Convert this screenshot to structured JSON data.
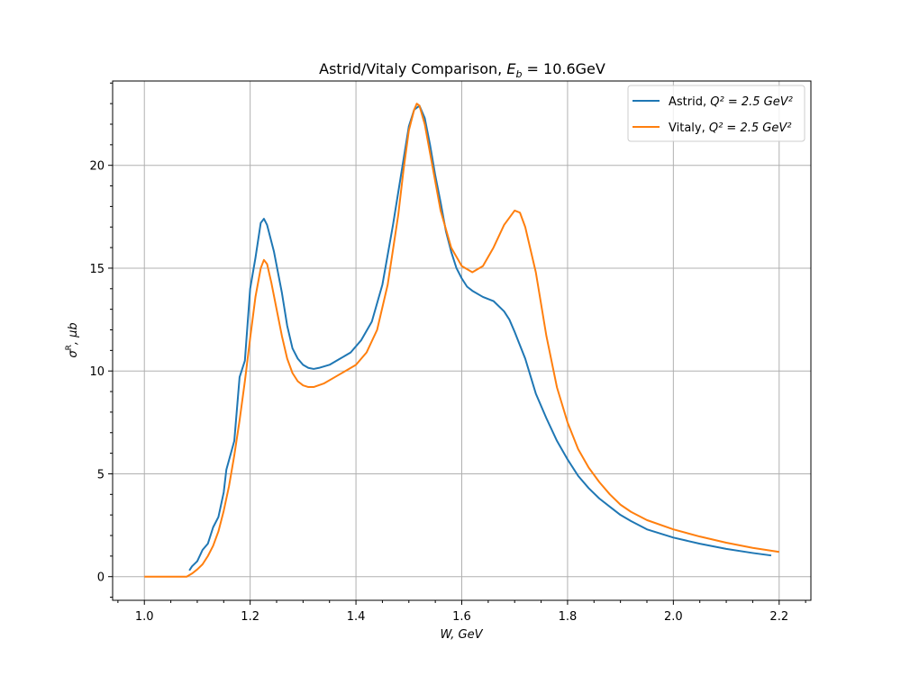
{
  "chart_data": {
    "type": "line",
    "title_plain": "Astrid/Vitaly Comparison, ",
    "title_math_base": "E",
    "title_math_sub": "b",
    "title_math_rest": " = 10.6GeV",
    "xlabel_a": "W",
    "xlabel_b": ", GeV",
    "ylabel_base": "σ",
    "ylabel_sup": "R",
    "ylabel_rest": ", μb",
    "xlim": [
      0.94,
      2.26
    ],
    "ylim": [
      -1.15,
      24.1
    ],
    "x_ticks": [
      1.0,
      1.2,
      1.4,
      1.6,
      1.8,
      2.0,
      2.2
    ],
    "x_tick_labels": [
      "1.0",
      "1.2",
      "1.4",
      "1.6",
      "1.8",
      "2.0",
      "2.2"
    ],
    "y_ticks": [
      0,
      5,
      10,
      15,
      20
    ],
    "y_tick_labels": [
      "0",
      "5",
      "10",
      "15",
      "20"
    ],
    "grid": true,
    "legend_placement": "top-right",
    "series": [
      {
        "name_prefix": "Astrid, ",
        "name_math": "Q² = 2.5 GeV²",
        "color": "#1f77b4",
        "points": [
          [
            1.085,
            0.3
          ],
          [
            1.09,
            0.5
          ],
          [
            1.1,
            0.75
          ],
          [
            1.11,
            1.3
          ],
          [
            1.12,
            1.6
          ],
          [
            1.13,
            2.4
          ],
          [
            1.14,
            2.9
          ],
          [
            1.15,
            4.1
          ],
          [
            1.155,
            5.2
          ],
          [
            1.17,
            6.6
          ],
          [
            1.18,
            9.7
          ],
          [
            1.19,
            10.5
          ],
          [
            1.2,
            14.0
          ],
          [
            1.21,
            15.5
          ],
          [
            1.22,
            17.2
          ],
          [
            1.226,
            17.4
          ],
          [
            1.232,
            17.1
          ],
          [
            1.245,
            15.8
          ],
          [
            1.26,
            13.8
          ],
          [
            1.27,
            12.2
          ],
          [
            1.28,
            11.1
          ],
          [
            1.29,
            10.6
          ],
          [
            1.3,
            10.3
          ],
          [
            1.31,
            10.15
          ],
          [
            1.32,
            10.1
          ],
          [
            1.33,
            10.15
          ],
          [
            1.35,
            10.3
          ],
          [
            1.37,
            10.6
          ],
          [
            1.39,
            10.9
          ],
          [
            1.41,
            11.5
          ],
          [
            1.43,
            12.4
          ],
          [
            1.45,
            14.2
          ],
          [
            1.47,
            17.1
          ],
          [
            1.49,
            20.3
          ],
          [
            1.5,
            21.9
          ],
          [
            1.51,
            22.7
          ],
          [
            1.52,
            22.9
          ],
          [
            1.53,
            22.3
          ],
          [
            1.54,
            21.0
          ],
          [
            1.55,
            19.5
          ],
          [
            1.56,
            18.2
          ],
          [
            1.57,
            16.8
          ],
          [
            1.58,
            15.8
          ],
          [
            1.59,
            15.0
          ],
          [
            1.6,
            14.5
          ],
          [
            1.61,
            14.1
          ],
          [
            1.62,
            13.9
          ],
          [
            1.64,
            13.6
          ],
          [
            1.66,
            13.4
          ],
          [
            1.68,
            12.9
          ],
          [
            1.69,
            12.5
          ],
          [
            1.7,
            11.9
          ],
          [
            1.72,
            10.6
          ],
          [
            1.74,
            8.9
          ],
          [
            1.76,
            7.7
          ],
          [
            1.78,
            6.6
          ],
          [
            1.8,
            5.7
          ],
          [
            1.82,
            4.9
          ],
          [
            1.84,
            4.3
          ],
          [
            1.86,
            3.8
          ],
          [
            1.88,
            3.4
          ],
          [
            1.9,
            3.0
          ],
          [
            1.92,
            2.7
          ],
          [
            1.95,
            2.3
          ],
          [
            2.0,
            1.9
          ],
          [
            2.05,
            1.6
          ],
          [
            2.1,
            1.35
          ],
          [
            2.15,
            1.15
          ],
          [
            2.185,
            1.03
          ]
        ]
      },
      {
        "name_prefix": "Vitaly, ",
        "name_math": "Q² = 2.5 GeV²",
        "color": "#ff7f0e",
        "points": [
          [
            1.0,
            0.0
          ],
          [
            1.04,
            0.0
          ],
          [
            1.08,
            0.0
          ],
          [
            1.09,
            0.15
          ],
          [
            1.1,
            0.35
          ],
          [
            1.11,
            0.6
          ],
          [
            1.12,
            1.0
          ],
          [
            1.13,
            1.5
          ],
          [
            1.14,
            2.2
          ],
          [
            1.15,
            3.2
          ],
          [
            1.16,
            4.4
          ],
          [
            1.17,
            5.9
          ],
          [
            1.18,
            7.6
          ],
          [
            1.19,
            9.5
          ],
          [
            1.2,
            11.6
          ],
          [
            1.21,
            13.6
          ],
          [
            1.22,
            15.0
          ],
          [
            1.226,
            15.4
          ],
          [
            1.232,
            15.2
          ],
          [
            1.24,
            14.3
          ],
          [
            1.25,
            13.0
          ],
          [
            1.26,
            11.7
          ],
          [
            1.27,
            10.6
          ],
          [
            1.28,
            9.9
          ],
          [
            1.29,
            9.5
          ],
          [
            1.3,
            9.3
          ],
          [
            1.31,
            9.22
          ],
          [
            1.32,
            9.22
          ],
          [
            1.34,
            9.4
          ],
          [
            1.36,
            9.7
          ],
          [
            1.38,
            10.0
          ],
          [
            1.4,
            10.3
          ],
          [
            1.42,
            10.9
          ],
          [
            1.44,
            12.0
          ],
          [
            1.46,
            14.2
          ],
          [
            1.48,
            17.6
          ],
          [
            1.49,
            19.8
          ],
          [
            1.5,
            21.7
          ],
          [
            1.51,
            22.7
          ],
          [
            1.515,
            23.0
          ],
          [
            1.52,
            22.9
          ],
          [
            1.53,
            22.0
          ],
          [
            1.54,
            20.6
          ],
          [
            1.56,
            17.8
          ],
          [
            1.58,
            16.0
          ],
          [
            1.6,
            15.1
          ],
          [
            1.62,
            14.8
          ],
          [
            1.64,
            15.1
          ],
          [
            1.66,
            16.0
          ],
          [
            1.68,
            17.1
          ],
          [
            1.7,
            17.8
          ],
          [
            1.71,
            17.7
          ],
          [
            1.72,
            17.0
          ],
          [
            1.74,
            14.8
          ],
          [
            1.76,
            11.7
          ],
          [
            1.78,
            9.2
          ],
          [
            1.8,
            7.5
          ],
          [
            1.82,
            6.2
          ],
          [
            1.84,
            5.3
          ],
          [
            1.86,
            4.6
          ],
          [
            1.88,
            4.0
          ],
          [
            1.9,
            3.5
          ],
          [
            1.92,
            3.15
          ],
          [
            1.95,
            2.75
          ],
          [
            2.0,
            2.3
          ],
          [
            2.05,
            1.95
          ],
          [
            2.1,
            1.65
          ],
          [
            2.15,
            1.4
          ],
          [
            2.2,
            1.2
          ]
        ]
      }
    ]
  }
}
